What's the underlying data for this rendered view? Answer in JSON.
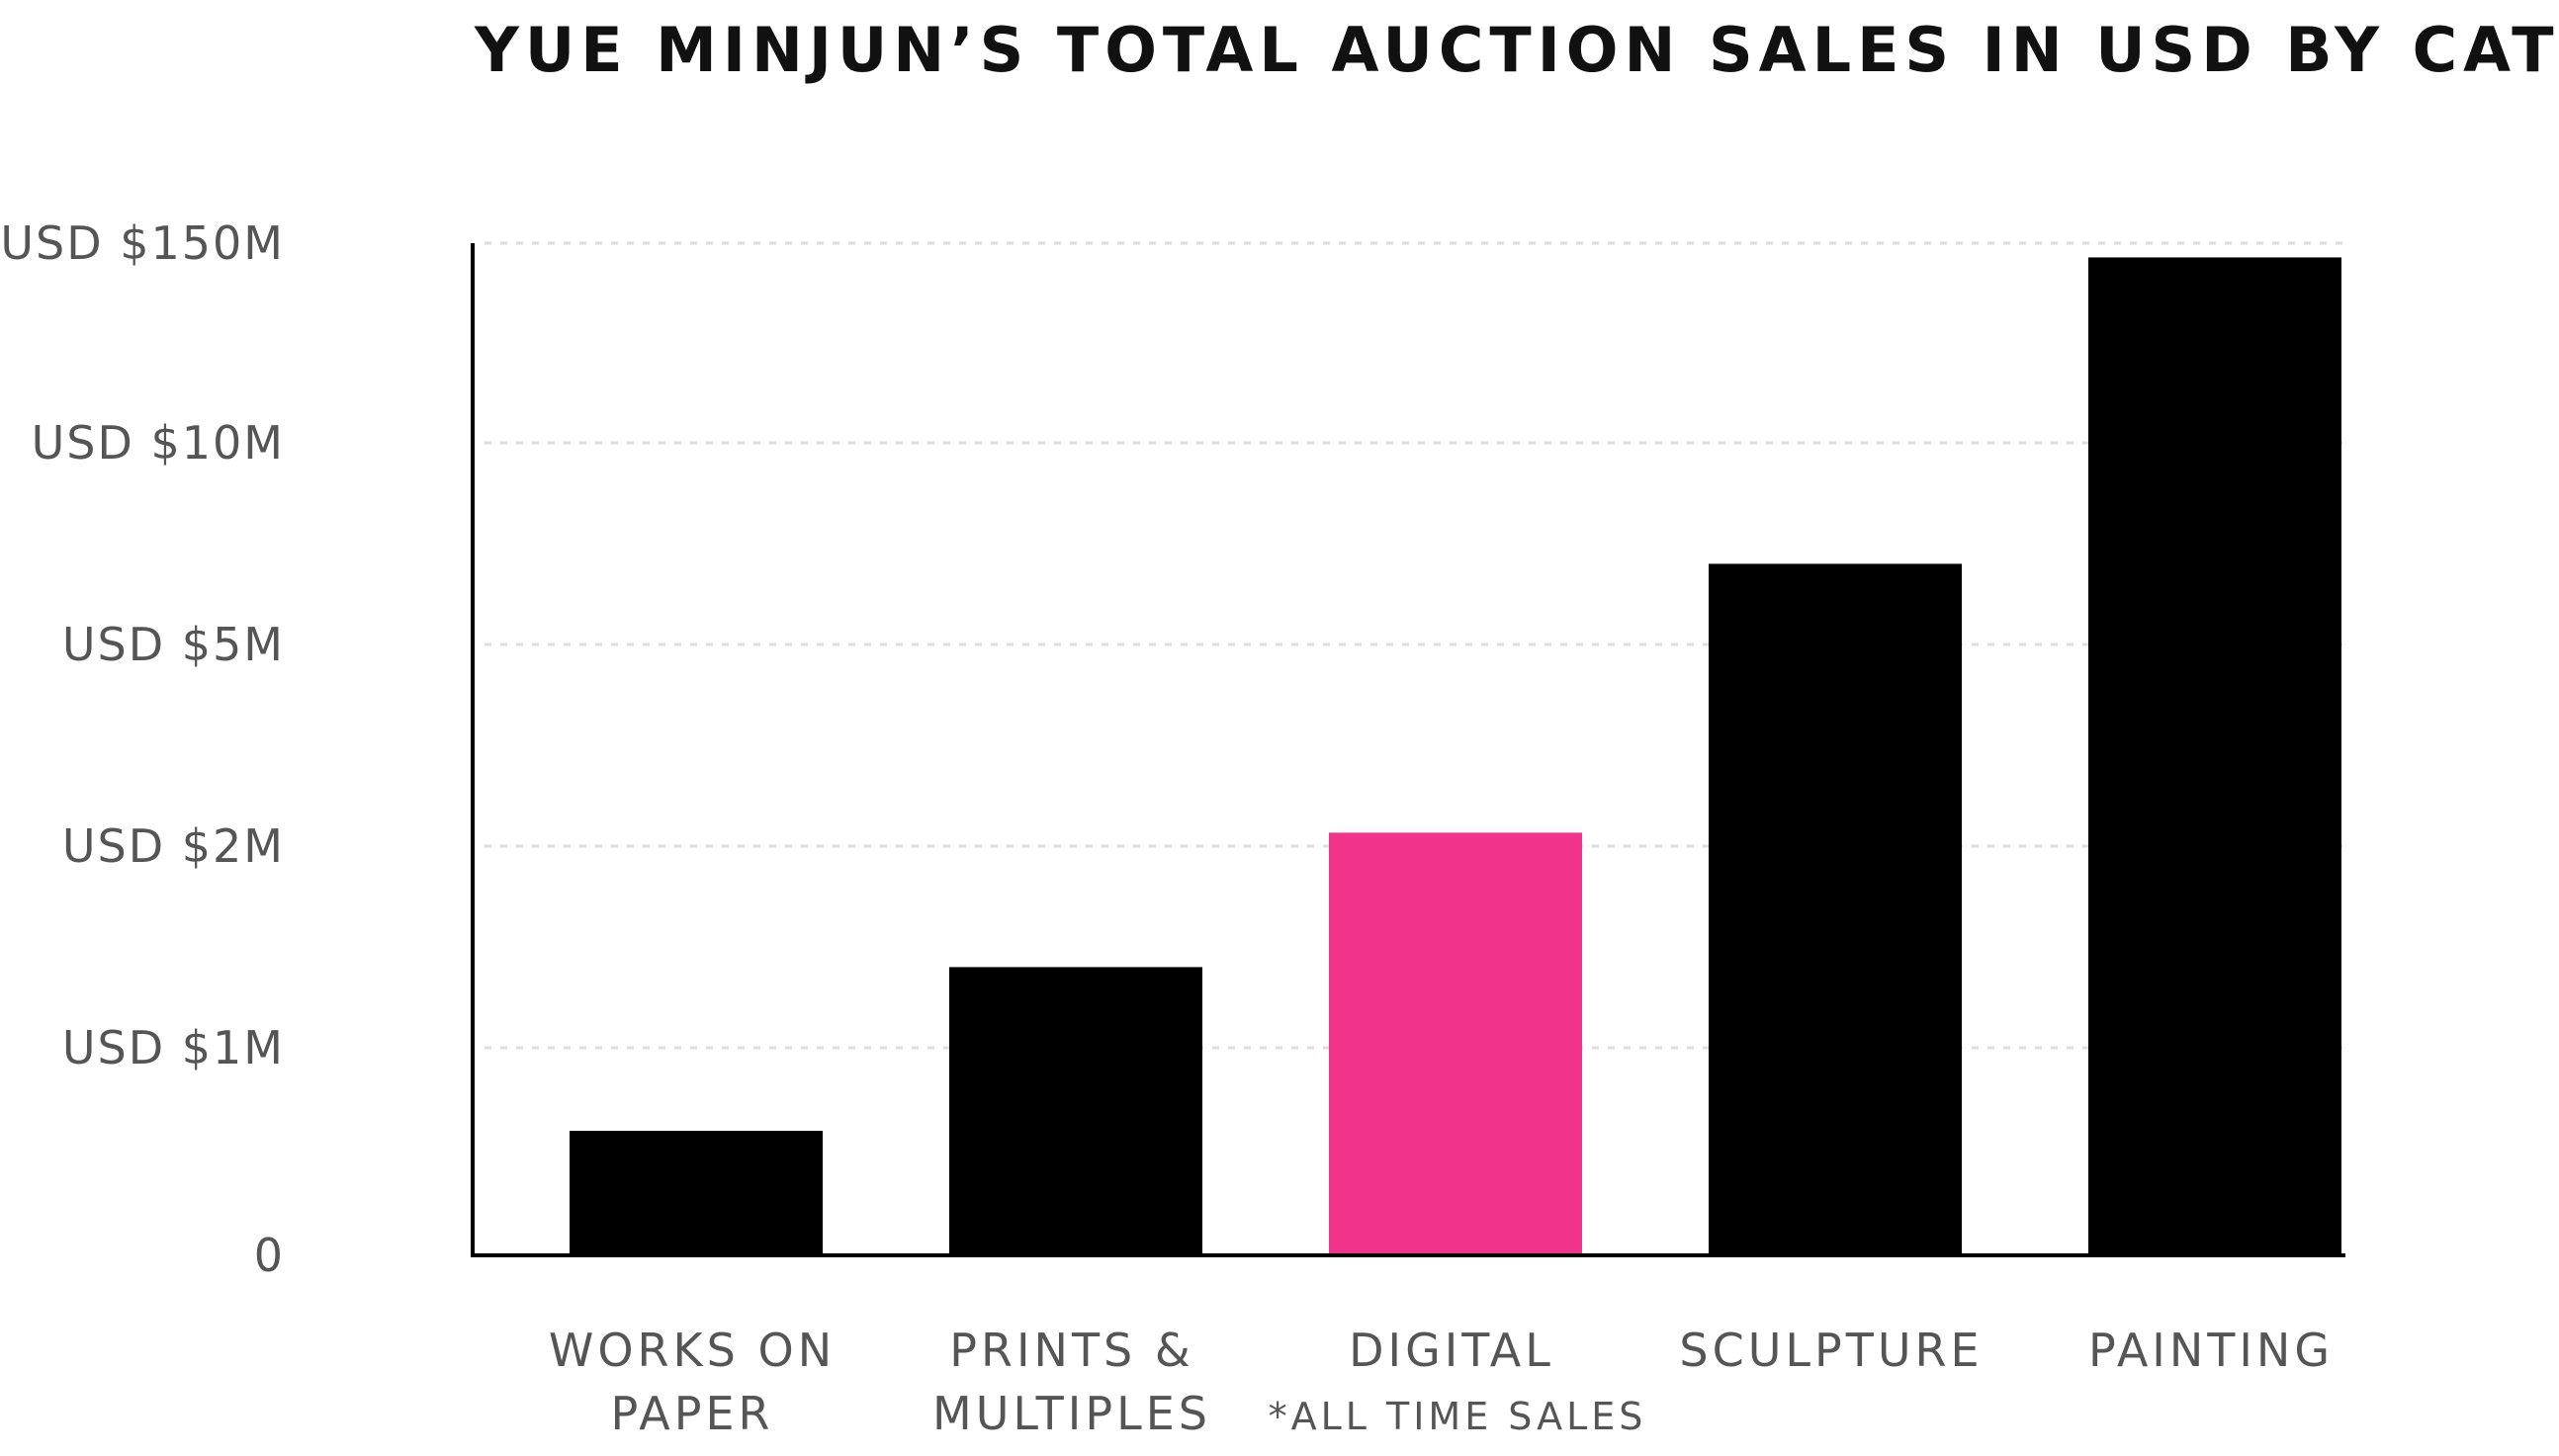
{
  "chart_data": {
    "type": "bar",
    "title": "YUE MINJUN’S TOTAL AUCTION SALES IN USD BY CATEGORY",
    "y_scale": "nonlinear (ordinal tick spacing)",
    "y_ticks": [
      "0",
      "USD $1M",
      "USD $2M",
      "USD $5M",
      "USD $10M",
      "USD $150M"
    ],
    "y_tick_values": [
      0,
      1000000,
      2000000,
      5000000,
      10000000,
      150000000
    ],
    "grid": true,
    "grid_style": "dashed horizontal",
    "categories": [
      {
        "label_lines": [
          "WORKS ON",
          "PAPER"
        ],
        "note": ""
      },
      {
        "label_lines": [
          "PRINTS &",
          "MULTIPLES"
        ],
        "note": ""
      },
      {
        "label_lines": [
          "DIGITAL"
        ],
        "note": "*ALL TIME SALES"
      },
      {
        "label_lines": [
          "SCULPTURE"
        ],
        "note": ""
      },
      {
        "label_lines": [
          "PAINTING"
        ],
        "note": ""
      }
    ],
    "values": [
      600000,
      1400000,
      2200000,
      7000000,
      140000000
    ],
    "colors": [
      "#000000",
      "#000000",
      "#f2338c",
      "#000000",
      "#000000"
    ],
    "highlight_color": "#f2338c",
    "bar_color": "#000000"
  }
}
